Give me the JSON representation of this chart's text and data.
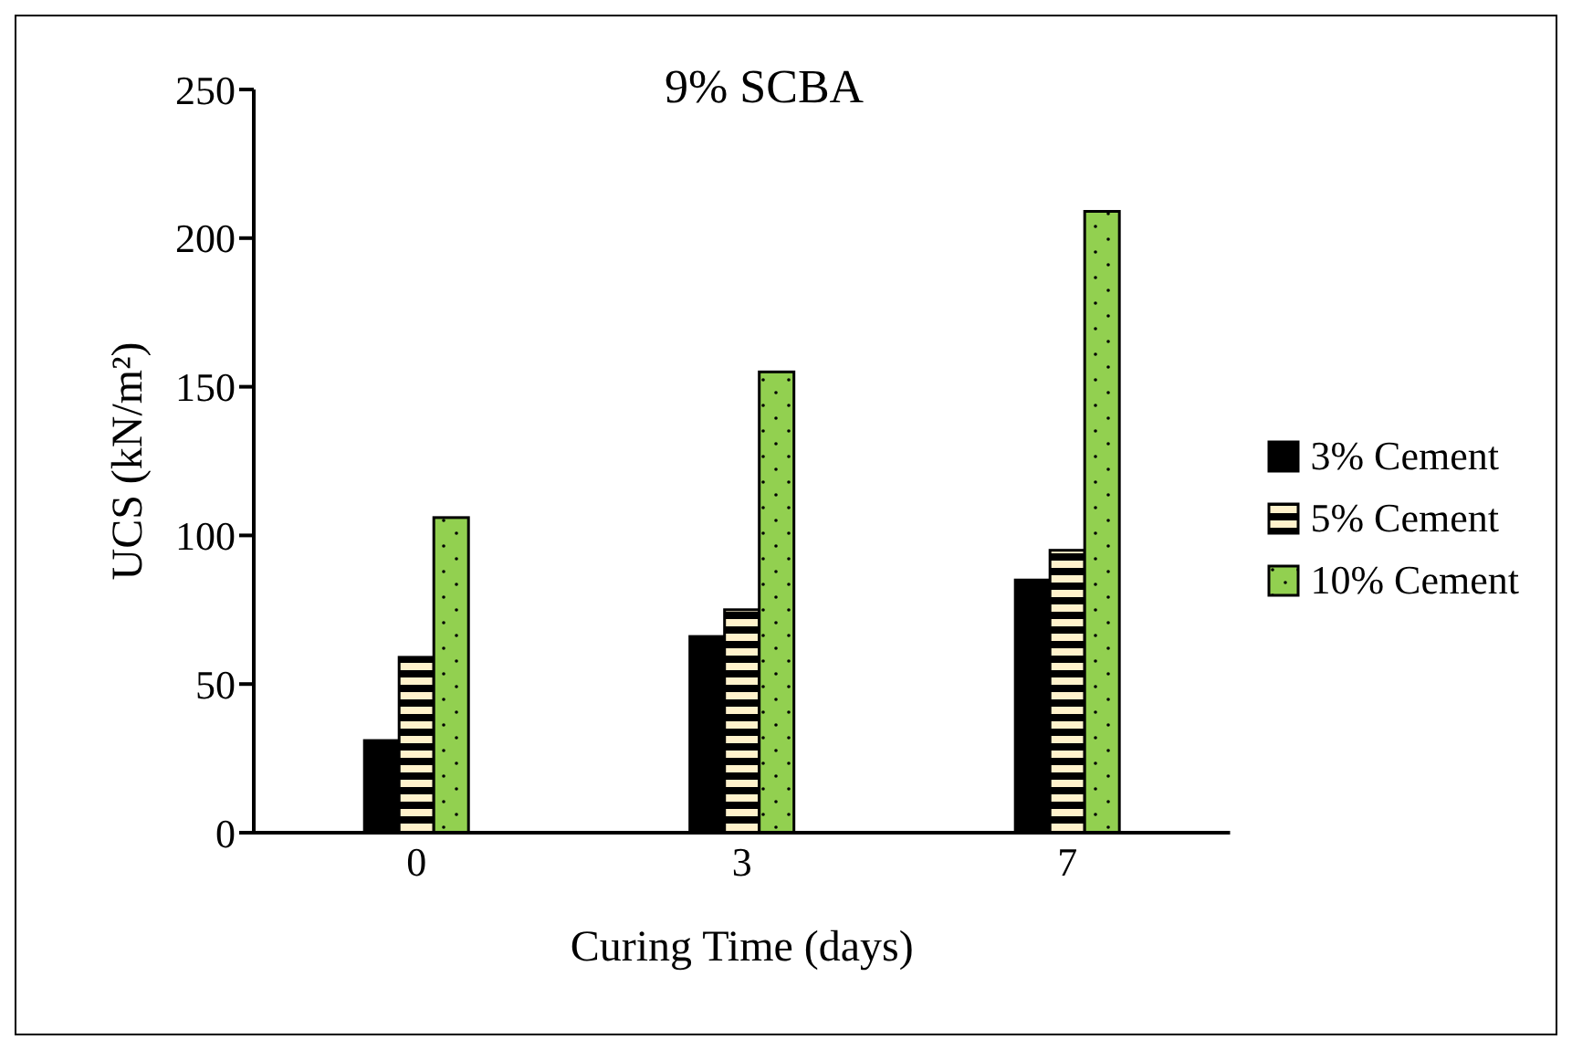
{
  "chart_data": {
    "type": "bar",
    "title": "9% SCBA",
    "xlabel": "Curing Time (days)",
    "ylabel": "UCS (kN/m²)",
    "categories": [
      "0",
      "3",
      "7"
    ],
    "series": [
      {
        "name": "3% Cement",
        "color": "#000000",
        "values": [
          31,
          66,
          85
        ]
      },
      {
        "name": "5% Cement",
        "color": "#fff2cc",
        "values": [
          59,
          75,
          95
        ]
      },
      {
        "name": "10% Cement",
        "color": "#92d050",
        "values": [
          106,
          155,
          209
        ]
      }
    ],
    "ylim": [
      0,
      250
    ],
    "yticks": [
      0,
      50,
      100,
      150,
      200,
      250
    ],
    "grid": false,
    "legend": "right"
  }
}
